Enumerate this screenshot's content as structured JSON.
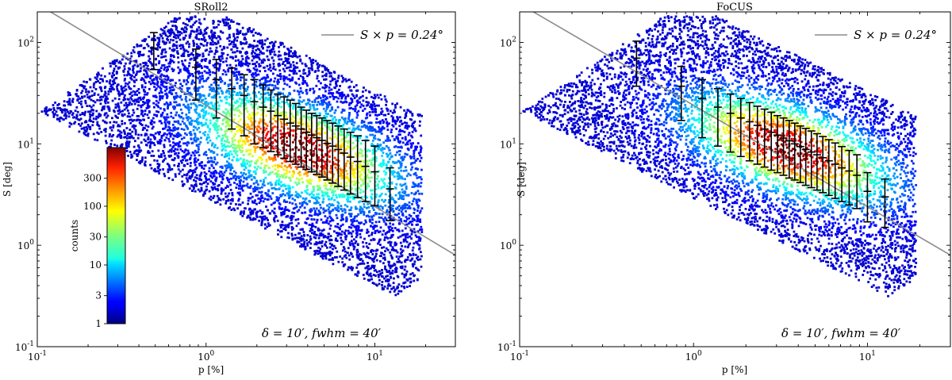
{
  "chart_data": [
    {
      "type": "scatter",
      "title": "SRoll2",
      "xlabel": "p [%]",
      "ylabel": "S [deg]",
      "xscale": "log",
      "yscale": "log",
      "xlim": [
        0.1,
        30
      ],
      "ylim": [
        0.1,
        200
      ],
      "x_ticks": [
        "10^{-1}",
        "10^{0}",
        "10^{1}"
      ],
      "y_ticks": [
        "10^{-1}",
        "10^{0}",
        "10^{1}",
        "10^{2}"
      ],
      "legend": {
        "label": "S × p = 0.24°",
        "placement": "top-right",
        "color": "#8c8c8c"
      },
      "reference_line": {
        "label": "S × p = 0.24°",
        "Sp_deg_percent": 24
      },
      "annotation": "δ = 10′, fwhm = 40′",
      "has_colorbar": true,
      "errorbars": [
        {
          "p": 0.49,
          "S": 88,
          "lo": 54,
          "hi": 125
        },
        {
          "p": 0.87,
          "S": 57,
          "lo": 27,
          "hi": 86
        },
        {
          "p": 1.15,
          "S": 43,
          "lo": 18,
          "hi": 68
        },
        {
          "p": 1.42,
          "S": 35,
          "lo": 14,
          "hi": 56
        },
        {
          "p": 1.68,
          "S": 30,
          "lo": 12,
          "hi": 48
        },
        {
          "p": 1.93,
          "S": 26,
          "lo": 10,
          "hi": 43
        },
        {
          "p": 2.18,
          "S": 23,
          "lo": 9.2,
          "hi": 38
        },
        {
          "p": 2.42,
          "S": 21,
          "lo": 8.4,
          "hi": 34
        },
        {
          "p": 2.66,
          "S": 19,
          "lo": 7.8,
          "hi": 31
        },
        {
          "p": 2.9,
          "S": 17.5,
          "lo": 7.2,
          "hi": 29
        },
        {
          "p": 3.15,
          "S": 16,
          "lo": 6.7,
          "hi": 27
        },
        {
          "p": 3.4,
          "S": 15,
          "lo": 6.3,
          "hi": 25
        },
        {
          "p": 3.66,
          "S": 14,
          "lo": 5.9,
          "hi": 23
        },
        {
          "p": 3.93,
          "S": 13,
          "lo": 5.6,
          "hi": 21.5
        },
        {
          "p": 4.22,
          "S": 12.2,
          "lo": 5.3,
          "hi": 20
        },
        {
          "p": 4.53,
          "S": 11.5,
          "lo": 5.0,
          "hi": 19
        },
        {
          "p": 4.86,
          "S": 10.8,
          "lo": 4.7,
          "hi": 18
        },
        {
          "p": 5.22,
          "S": 10.1,
          "lo": 4.4,
          "hi": 17
        },
        {
          "p": 5.62,
          "S": 9.5,
          "lo": 4.1,
          "hi": 16
        },
        {
          "p": 6.07,
          "S": 8.8,
          "lo": 3.8,
          "hi": 15
        },
        {
          "p": 6.58,
          "S": 8.1,
          "lo": 3.5,
          "hi": 14
        },
        {
          "p": 7.17,
          "S": 7.4,
          "lo": 3.2,
          "hi": 13
        },
        {
          "p": 7.9,
          "S": 6.7,
          "lo": 2.95,
          "hi": 12
        },
        {
          "p": 8.8,
          "S": 6.0,
          "lo": 2.7,
          "hi": 10.8
        },
        {
          "p": 10.0,
          "S": 5.3,
          "lo": 2.45,
          "hi": 9.5
        },
        {
          "p": 12.3,
          "S": 3.6,
          "lo": 1.75,
          "hi": 5.8
        }
      ]
    },
    {
      "type": "scatter",
      "title": "FoCUS",
      "xlabel": "p [%]",
      "ylabel": "S [deg]",
      "xscale": "log",
      "yscale": "log",
      "xlim": [
        0.1,
        30
      ],
      "ylim": [
        0.1,
        200
      ],
      "x_ticks": [
        "10^{-1}",
        "10^{0}",
        "10^{1}"
      ],
      "y_ticks": [
        "10^{-1}",
        "10^{0}",
        "10^{1}",
        "10^{2}"
      ],
      "legend": {
        "label": "S × p = 0.24°",
        "placement": "top-right",
        "color": "#8c8c8c"
      },
      "reference_line": {
        "label": "S × p = 0.24°",
        "Sp_deg_percent": 24
      },
      "annotation": "δ = 10′, fwhm = 40′",
      "has_colorbar": false,
      "errorbars": [
        {
          "p": 0.47,
          "S": 70,
          "lo": 37,
          "hi": 103
        },
        {
          "p": 0.85,
          "S": 37,
          "lo": 17,
          "hi": 58
        },
        {
          "p": 1.12,
          "S": 28,
          "lo": 11.5,
          "hi": 43
        },
        {
          "p": 1.38,
          "S": 23,
          "lo": 9.5,
          "hi": 35
        },
        {
          "p": 1.63,
          "S": 20,
          "lo": 8.3,
          "hi": 31
        },
        {
          "p": 1.87,
          "S": 18,
          "lo": 7.5,
          "hi": 28
        },
        {
          "p": 2.1,
          "S": 16.5,
          "lo": 6.8,
          "hi": 25.5
        },
        {
          "p": 2.33,
          "S": 15.2,
          "lo": 6.3,
          "hi": 23.5
        },
        {
          "p": 2.56,
          "S": 14,
          "lo": 5.9,
          "hi": 22
        },
        {
          "p": 2.8,
          "S": 13,
          "lo": 5.5,
          "hi": 20.5
        },
        {
          "p": 3.04,
          "S": 12.2,
          "lo": 5.2,
          "hi": 19
        },
        {
          "p": 3.29,
          "S": 11.4,
          "lo": 4.9,
          "hi": 18
        },
        {
          "p": 3.55,
          "S": 10.7,
          "lo": 4.6,
          "hi": 17
        },
        {
          "p": 3.82,
          "S": 10.0,
          "lo": 4.4,
          "hi": 16
        },
        {
          "p": 4.11,
          "S": 9.4,
          "lo": 4.15,
          "hi": 15
        },
        {
          "p": 4.42,
          "S": 8.8,
          "lo": 3.9,
          "hi": 14.2
        },
        {
          "p": 4.76,
          "S": 8.3,
          "lo": 3.7,
          "hi": 13.4
        },
        {
          "p": 5.13,
          "S": 7.8,
          "lo": 3.5,
          "hi": 12.6
        },
        {
          "p": 5.54,
          "S": 7.3,
          "lo": 3.3,
          "hi": 11.8
        },
        {
          "p": 6.0,
          "S": 6.8,
          "lo": 3.1,
          "hi": 11.0
        },
        {
          "p": 6.52,
          "S": 6.3,
          "lo": 2.9,
          "hi": 10.2
        },
        {
          "p": 7.12,
          "S": 5.8,
          "lo": 2.7,
          "hi": 9.4
        },
        {
          "p": 7.85,
          "S": 5.4,
          "lo": 2.5,
          "hi": 8.6
        },
        {
          "p": 8.7,
          "S": 4.9,
          "lo": 2.3,
          "hi": 7.8
        },
        {
          "p": 10.0,
          "S": 3.4,
          "lo": 1.7,
          "hi": 5.2
        },
        {
          "p": 12.6,
          "S": 3.0,
          "lo": 1.5,
          "hi": 4.5
        }
      ]
    }
  ],
  "colorbar": {
    "label": "counts",
    "scale": "log",
    "range": [
      1,
      1000
    ],
    "ticks": [
      {
        "value": 1,
        "label": "1"
      },
      {
        "value": 3,
        "label": "3"
      },
      {
        "value": 10,
        "label": "10"
      },
      {
        "value": 30,
        "label": "30"
      },
      {
        "value": 100,
        "label": "100"
      },
      {
        "value": 300,
        "label": "300"
      }
    ]
  }
}
